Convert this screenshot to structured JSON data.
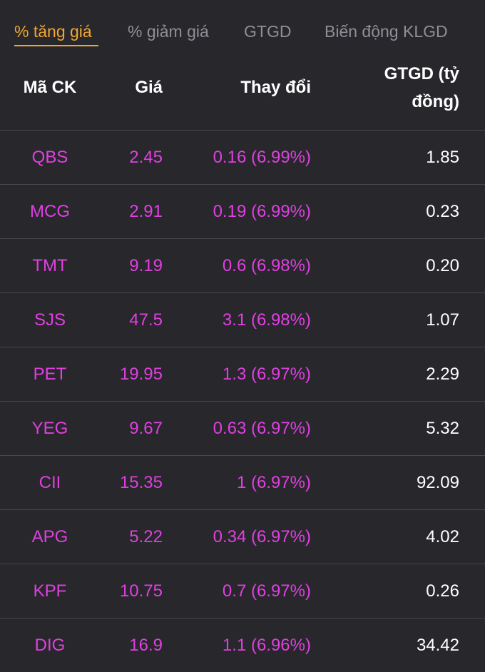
{
  "tabs": [
    {
      "label": "% tăng giá",
      "active": true
    },
    {
      "label": "% giảm giá",
      "active": false
    },
    {
      "label": "GTGD",
      "active": false
    },
    {
      "label": "Biến động KLGD",
      "active": false
    }
  ],
  "columns": {
    "code": "Mã CK",
    "price": "Giá",
    "change": "Thay đổi",
    "value_line1": "GTGD (tỷ",
    "value_line2": "đồng)"
  },
  "rows": [
    {
      "code": "QBS",
      "price": "2.45",
      "change": "0.16 (6.99%)",
      "value": "1.85"
    },
    {
      "code": "MCG",
      "price": "2.91",
      "change": "0.19 (6.99%)",
      "value": "0.23"
    },
    {
      "code": "TMT",
      "price": "9.19",
      "change": "0.6 (6.98%)",
      "value": "0.20"
    },
    {
      "code": "SJS",
      "price": "47.5",
      "change": "3.1 (6.98%)",
      "value": "1.07"
    },
    {
      "code": "PET",
      "price": "19.95",
      "change": "1.3 (6.97%)",
      "value": "2.29"
    },
    {
      "code": "YEG",
      "price": "9.67",
      "change": "0.63 (6.97%)",
      "value": "5.32"
    },
    {
      "code": "CII",
      "price": "15.35",
      "change": "1 (6.97%)",
      "value": "92.09"
    },
    {
      "code": "APG",
      "price": "5.22",
      "change": "0.34 (6.97%)",
      "value": "4.02"
    },
    {
      "code": "KPF",
      "price": "10.75",
      "change": "0.7 (6.97%)",
      "value": "0.26"
    },
    {
      "code": "DIG",
      "price": "16.9",
      "change": "1.1 (6.96%)",
      "value": "34.42"
    }
  ],
  "colors": {
    "background": "#27272c",
    "active_tab": "#f0a533",
    "inactive_tab": "#8f8f95",
    "ceiling_price": "#e040e0",
    "divider": "#48484e"
  }
}
